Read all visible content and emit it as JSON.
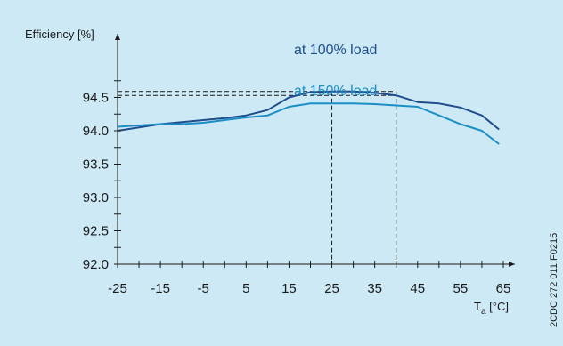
{
  "chart_data": {
    "type": "line",
    "ylabel": "Efficiency [%]",
    "xlabel_main": "T",
    "xlabel_sub": "a",
    "xlabel_unit": " [°C]",
    "xlim": [
      -25,
      65
    ],
    "ylim": [
      92.0,
      95.0
    ],
    "x_ticks": [
      -25,
      -20,
      -15,
      -10,
      -5,
      0,
      5,
      10,
      15,
      20,
      25,
      30,
      35,
      40,
      45,
      50,
      55,
      60,
      65
    ],
    "x_tick_labels": [
      {
        "value": -25,
        "label": "-25"
      },
      {
        "value": -15,
        "label": "-15"
      },
      {
        "value": -5,
        "label": "-5"
      },
      {
        "value": 5,
        "label": "5"
      },
      {
        "value": 15,
        "label": "15"
      },
      {
        "value": 25,
        "label": "25"
      },
      {
        "value": 35,
        "label": "35"
      },
      {
        "value": 45,
        "label": "45"
      },
      {
        "value": 55,
        "label": "55"
      },
      {
        "value": 65,
        "label": "65"
      }
    ],
    "y_ticks": [
      92.0,
      92.25,
      92.5,
      92.75,
      93.0,
      93.25,
      93.5,
      93.75,
      94.0,
      94.25,
      94.5,
      94.75
    ],
    "y_tick_labels": [
      {
        "value": 92.0,
        "label": "92.0"
      },
      {
        "value": 92.5,
        "label": "92.5"
      },
      {
        "value": 93.0,
        "label": "93.0"
      },
      {
        "value": 93.5,
        "label": "93.5"
      },
      {
        "value": 94.0,
        "label": "94.0"
      },
      {
        "value": 94.5,
        "label": "94.5"
      }
    ],
    "series": [
      {
        "name": "at 100% load",
        "color": "#1f4e8c",
        "x": [
          -25,
          -15,
          -10,
          -5,
          0,
          5,
          10,
          15,
          20,
          25,
          30,
          35,
          40,
          45,
          50,
          55,
          60,
          64
        ],
        "values": [
          94.0,
          94.1,
          94.13,
          94.16,
          94.19,
          94.23,
          94.31,
          94.5,
          94.58,
          94.59,
          94.59,
          94.57,
          94.53,
          94.43,
          94.41,
          94.35,
          94.23,
          94.02
        ]
      },
      {
        "name": "at 150% load",
        "color": "#1b8fc4",
        "x": [
          -25,
          -20,
          -15,
          -10,
          -5,
          0,
          5,
          10,
          15,
          20,
          25,
          30,
          35,
          40,
          45,
          50,
          55,
          60,
          64
        ],
        "values": [
          94.06,
          94.08,
          94.1,
          94.1,
          94.12,
          94.16,
          94.2,
          94.23,
          94.36,
          94.41,
          94.41,
          94.41,
          94.4,
          94.38,
          94.36,
          94.23,
          94.1,
          94.0,
          93.8
        ]
      }
    ],
    "reference_lines": {
      "horizontal": [
        94.59,
        94.53
      ],
      "vertical": [
        25,
        40
      ],
      "color": "#1a1a1a"
    },
    "annotations": [
      {
        "text": "at 100% load",
        "color": "#1f4e8c"
      },
      {
        "text": "at 150% load",
        "color": "#1b8fc4"
      }
    ],
    "doc_code": "2CDC 272 011 F0215",
    "grid": false
  }
}
